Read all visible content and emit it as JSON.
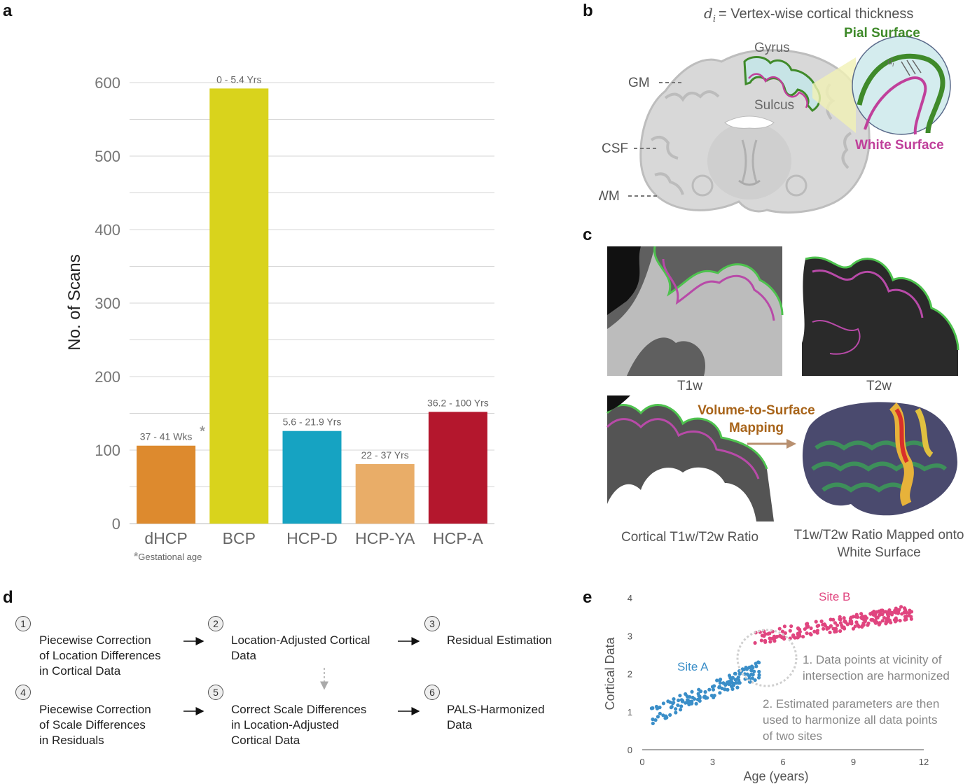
{
  "panels": {
    "a": "a",
    "b": "b",
    "c": "c",
    "d": "d",
    "e": "e"
  },
  "chart_data": [
    {
      "type": "bar",
      "categories": [
        "dHCP",
        "BCP",
        "HCP-D",
        "HCP-YA",
        "HCP-A"
      ],
      "values": [
        106,
        592,
        126,
        81,
        152
      ],
      "bar_labels": [
        "37 - 41 Wks",
        "0 - 5.4 Yrs",
        "5.6 - 21.9 Yrs",
        "22 - 37 Yrs",
        "36.2 - 100 Yrs"
      ],
      "colors": [
        "#dd8a2e",
        "#d9d31c",
        "#16a3c2",
        "#e9ad68",
        "#b4172d"
      ],
      "ylabel": "No. of Scans",
      "ylim": [
        0,
        600
      ],
      "yticks": [
        0,
        100,
        200,
        300,
        400,
        500,
        600
      ],
      "grid": true,
      "footnote_mark": "*",
      "footnote": "Gestational age"
    },
    {
      "type": "scatter",
      "xlabel": "Age (years)",
      "ylabel": "Cortical Data",
      "xlim": [
        0,
        12
      ],
      "ylim": [
        0,
        4
      ],
      "xticks": [
        0,
        3,
        6,
        9,
        12
      ],
      "yticks": [
        0,
        1,
        2,
        3,
        4
      ],
      "series": [
        {
          "name": "Site A",
          "color": "#3a8ec8",
          "x_range": [
            0.4,
            5.0
          ],
          "trend": "linear increase from about 0.9 to 2.1"
        },
        {
          "name": "Site B",
          "color": "#e0457f",
          "x_range": [
            4.8,
            11.5
          ],
          "trend": "increase from about 2.8 to 3.6"
        }
      ],
      "annotations": [
        "1. Data points at vicinity of intersection are harmonized",
        "2. Estimated parameters are then used to harmonize all data points of two sites"
      ]
    }
  ],
  "panel_b": {
    "formula_lhs": "d",
    "formula_sub": "i",
    "formula_rhs": "= Vertex-wise cortical thickness",
    "labels": {
      "gyrus": "Gyrus",
      "sulcus": "Sulcus",
      "gm": "GM",
      "csf": "CSF",
      "wm": "WM",
      "pial": "Pial Surface",
      "white": "White Surface",
      "di": "d",
      "di_sub": "i"
    },
    "pial_color": "#3f8a2a",
    "white_color": "#c0409b"
  },
  "panel_c": {
    "t1w": "T1w",
    "t2w": "T2w",
    "ratio": "Cortical T1w/T2w Ratio",
    "mapping_line1": "Volume-to-Surface",
    "mapping_line2": "Mapping",
    "mapped_line1": "T1w/T2w Ratio Mapped onto",
    "mapped_line2": "White Surface",
    "mapping_color": "#a8641a"
  },
  "panel_d": {
    "steps": [
      {
        "num": "1",
        "lines": [
          "Piecewise Correction",
          "of Location Differences",
          "in Cortical Data"
        ]
      },
      {
        "num": "2",
        "lines": [
          "Location-Adjusted Cortical",
          "Data"
        ]
      },
      {
        "num": "3",
        "lines": [
          "Residual Estimation"
        ]
      },
      {
        "num": "4",
        "lines": [
          "Piecewise Correction",
          "of Scale Differences",
          "in Residuals"
        ]
      },
      {
        "num": "5",
        "lines": [
          "Correct Scale Differences",
          "in Location-Adjusted",
          "Cortical Data"
        ]
      },
      {
        "num": "6",
        "lines": [
          "PALS-Harmonized",
          "Data"
        ]
      }
    ]
  }
}
